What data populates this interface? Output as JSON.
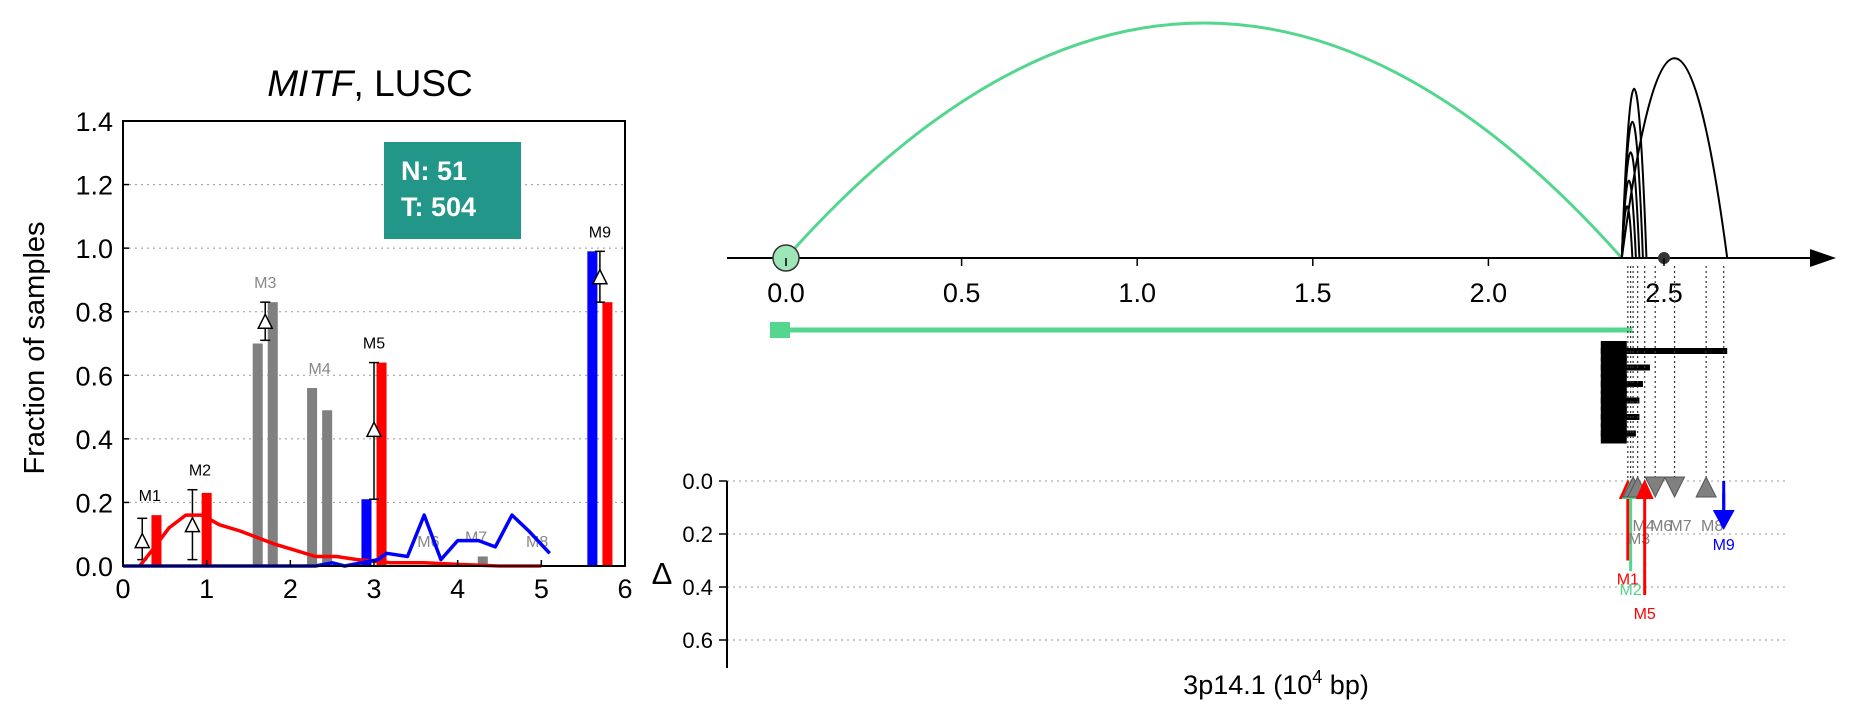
{
  "chart_data": [
    {
      "type": "bar",
      "title_italic": "MITF",
      "title_rest": ", LUSC",
      "ylabel": "Fraction of samples",
      "xlim": [
        0,
        6
      ],
      "ylim": [
        0,
        1.4
      ],
      "xticks": [
        "0",
        "1",
        "2",
        "3",
        "4",
        "5",
        "6"
      ],
      "yticks": [
        "0.0",
        "0.2",
        "0.4",
        "0.6",
        "0.8",
        "1.0",
        "1.2",
        "1.4"
      ],
      "grid": "horizontal dotted",
      "legend_box": {
        "line1": "N: 51",
        "line2": "T: 504",
        "color": "#229688"
      },
      "motifs": [
        {
          "label": "M1",
          "x": 0.4,
          "label_color": "#000000",
          "bars": [
            {
              "value": 0.16,
              "color": "#ff0000"
            }
          ],
          "delta": {
            "value": 0.08,
            "low": 0.02,
            "high": 0.15
          }
        },
        {
          "label": "M2",
          "x": 1.0,
          "label_color": "#000000",
          "bars": [
            {
              "value": 0.23,
              "color": "#ff0000"
            }
          ],
          "delta": {
            "value": 0.13,
            "low": 0.02,
            "high": 0.24
          }
        },
        {
          "label": "M3",
          "x": 1.7,
          "label_color": "#888888",
          "bars": [
            {
              "value": 0.7,
              "color": "#808080"
            },
            {
              "value": 0.83,
              "color": "#808080"
            }
          ],
          "delta": {
            "value": 0.77,
            "low": 0.71,
            "high": 0.83
          }
        },
        {
          "label": "M4",
          "x": 2.35,
          "label_color": "#888888",
          "bars": [
            {
              "value": 0.56,
              "color": "#808080"
            },
            {
              "value": 0.49,
              "color": "#808080"
            }
          ]
        },
        {
          "label": "M5",
          "x": 3.0,
          "label_color": "#000000",
          "bars": [
            {
              "value": 0.21,
              "color": "#0000ff"
            },
            {
              "value": 0.64,
              "color": "#ff0000"
            }
          ],
          "delta": {
            "value": 0.43,
            "low": 0.21,
            "high": 0.64
          }
        },
        {
          "label": "M6",
          "x": 3.65,
          "label_color": "#888888",
          "bars": []
        },
        {
          "label": "M7",
          "x": 4.3,
          "label_color": "#888888",
          "bars": [
            {
              "value": 0.03,
              "color": "#808080"
            }
          ]
        },
        {
          "label": "M8",
          "x": 4.95,
          "label_color": "#888888",
          "bars": []
        },
        {
          "label": "M9",
          "x": 5.7,
          "label_color": "#000000",
          "bars": [
            {
              "value": 0.99,
              "color": "#0000ff"
            },
            {
              "value": 0.83,
              "color": "#ff0000"
            }
          ],
          "delta": {
            "value": 0.91,
            "low": 0.83,
            "high": 0.99
          }
        }
      ],
      "series": [
        {
          "color": "#ff0000",
          "points": [
            [
              0.2,
              0.0
            ],
            [
              0.35,
              0.05
            ],
            [
              0.55,
              0.12
            ],
            [
              0.75,
              0.16
            ],
            [
              0.95,
              0.16
            ],
            [
              1.15,
              0.13
            ],
            [
              1.4,
              0.11
            ],
            [
              1.6,
              0.09
            ],
            [
              1.8,
              0.07
            ],
            [
              2.05,
              0.05
            ],
            [
              2.3,
              0.03
            ],
            [
              2.55,
              0.03
            ],
            [
              2.8,
              0.02
            ],
            [
              3.2,
              0.01
            ],
            [
              3.6,
              0.01
            ],
            [
              4.0,
              0.005
            ],
            [
              4.5,
              0.0
            ],
            [
              5.0,
              0.0
            ]
          ]
        },
        {
          "color": "#0000ff",
          "points": [
            [
              0.0,
              0.0
            ],
            [
              2.3,
              0.0
            ],
            [
              2.5,
              0.01
            ],
            [
              2.65,
              0.0
            ],
            [
              3.05,
              0.02
            ],
            [
              3.15,
              0.04
            ],
            [
              3.4,
              0.03
            ],
            [
              3.6,
              0.16
            ],
            [
              3.8,
              0.02
            ],
            [
              4.0,
              0.08
            ],
            [
              4.25,
              0.08
            ],
            [
              4.45,
              0.06
            ],
            [
              4.65,
              0.16
            ],
            [
              4.85,
              0.11
            ],
            [
              5.1,
              0.04
            ]
          ]
        }
      ]
    },
    {
      "type": "scatter",
      "xlabel": "3p14.1 (10",
      "xlabel_sup": "4",
      "xlabel_end": " bp)",
      "ylabel": "Δ",
      "xlim": [
        -0.05,
        2.75
      ],
      "xticks": [
        "0.0",
        "0.5",
        "1.0",
        "1.5",
        "2.0",
        "2.5"
      ],
      "ylim": [
        0,
        0.7
      ],
      "yticks": [
        "0.0",
        "0.2",
        "0.4",
        "0.6"
      ],
      "arcs": [
        {
          "x1": 0.0,
          "x2": 2.38,
          "height": 1.0,
          "color": "#55d68f"
        },
        {
          "x1": 2.38,
          "x2": 2.45,
          "height": 0.72,
          "color": "#000000"
        },
        {
          "x1": 2.38,
          "x2": 2.44,
          "height": 0.58,
          "color": "#000000"
        },
        {
          "x1": 2.38,
          "x2": 2.43,
          "height": 0.45,
          "color": "#000000"
        },
        {
          "x1": 2.38,
          "x2": 2.42,
          "height": 0.33,
          "color": "#000000"
        },
        {
          "x1": 2.38,
          "x2": 2.41,
          "height": 0.22,
          "color": "#000000"
        },
        {
          "x1": 2.38,
          "x2": 2.68,
          "height": 0.85,
          "color": "#000000"
        }
      ],
      "transcripts": [
        {
          "start": -0.02,
          "end": 2.41,
          "color": "#55d68f"
        },
        {
          "start": 2.32,
          "end": 2.68,
          "color": "#000000"
        },
        {
          "start": 2.32,
          "end": 2.46,
          "color": "#000000"
        },
        {
          "start": 2.32,
          "end": 2.44,
          "color": "#000000"
        },
        {
          "start": 2.32,
          "end": 2.43,
          "color": "#000000"
        },
        {
          "start": 2.32,
          "end": 2.43,
          "color": "#000000"
        },
        {
          "start": 2.32,
          "end": 2.42,
          "color": "#000000"
        }
      ],
      "markers": [
        {
          "label": "M1",
          "x": 2.397,
          "delta": 0.3,
          "dir": "up",
          "color": "#ff0000",
          "arrow": true
        },
        {
          "label": "M2",
          "x": 2.405,
          "delta": 0.34,
          "dir": "up",
          "color": "#55d68f",
          "arrow": true
        },
        {
          "label": "M3",
          "x": 2.412,
          "delta": 0.2,
          "dir": "up",
          "color": "#808080",
          "arrow": false
        },
        {
          "label": "M4",
          "x": 2.425,
          "delta": 0.15,
          "dir": "up",
          "color": "#808080",
          "arrow": false
        },
        {
          "label": "M5",
          "x": 2.445,
          "delta": 0.43,
          "dir": "up",
          "color": "#ff0000",
          "arrow": true
        },
        {
          "label": "M6",
          "x": 2.475,
          "delta": 0.15,
          "dir": "down",
          "color": "#808080",
          "arrow": false
        },
        {
          "label": "M7",
          "x": 2.53,
          "delta": 0.15,
          "dir": "down",
          "color": "#808080",
          "arrow": false
        },
        {
          "label": "M8",
          "x": 2.62,
          "delta": 0.15,
          "dir": "up",
          "color": "#808080",
          "arrow": false
        },
        {
          "label": "M9",
          "x": 2.67,
          "delta": 0.17,
          "dir": "down",
          "color": "#0000ff",
          "arrow": true
        }
      ]
    }
  ]
}
